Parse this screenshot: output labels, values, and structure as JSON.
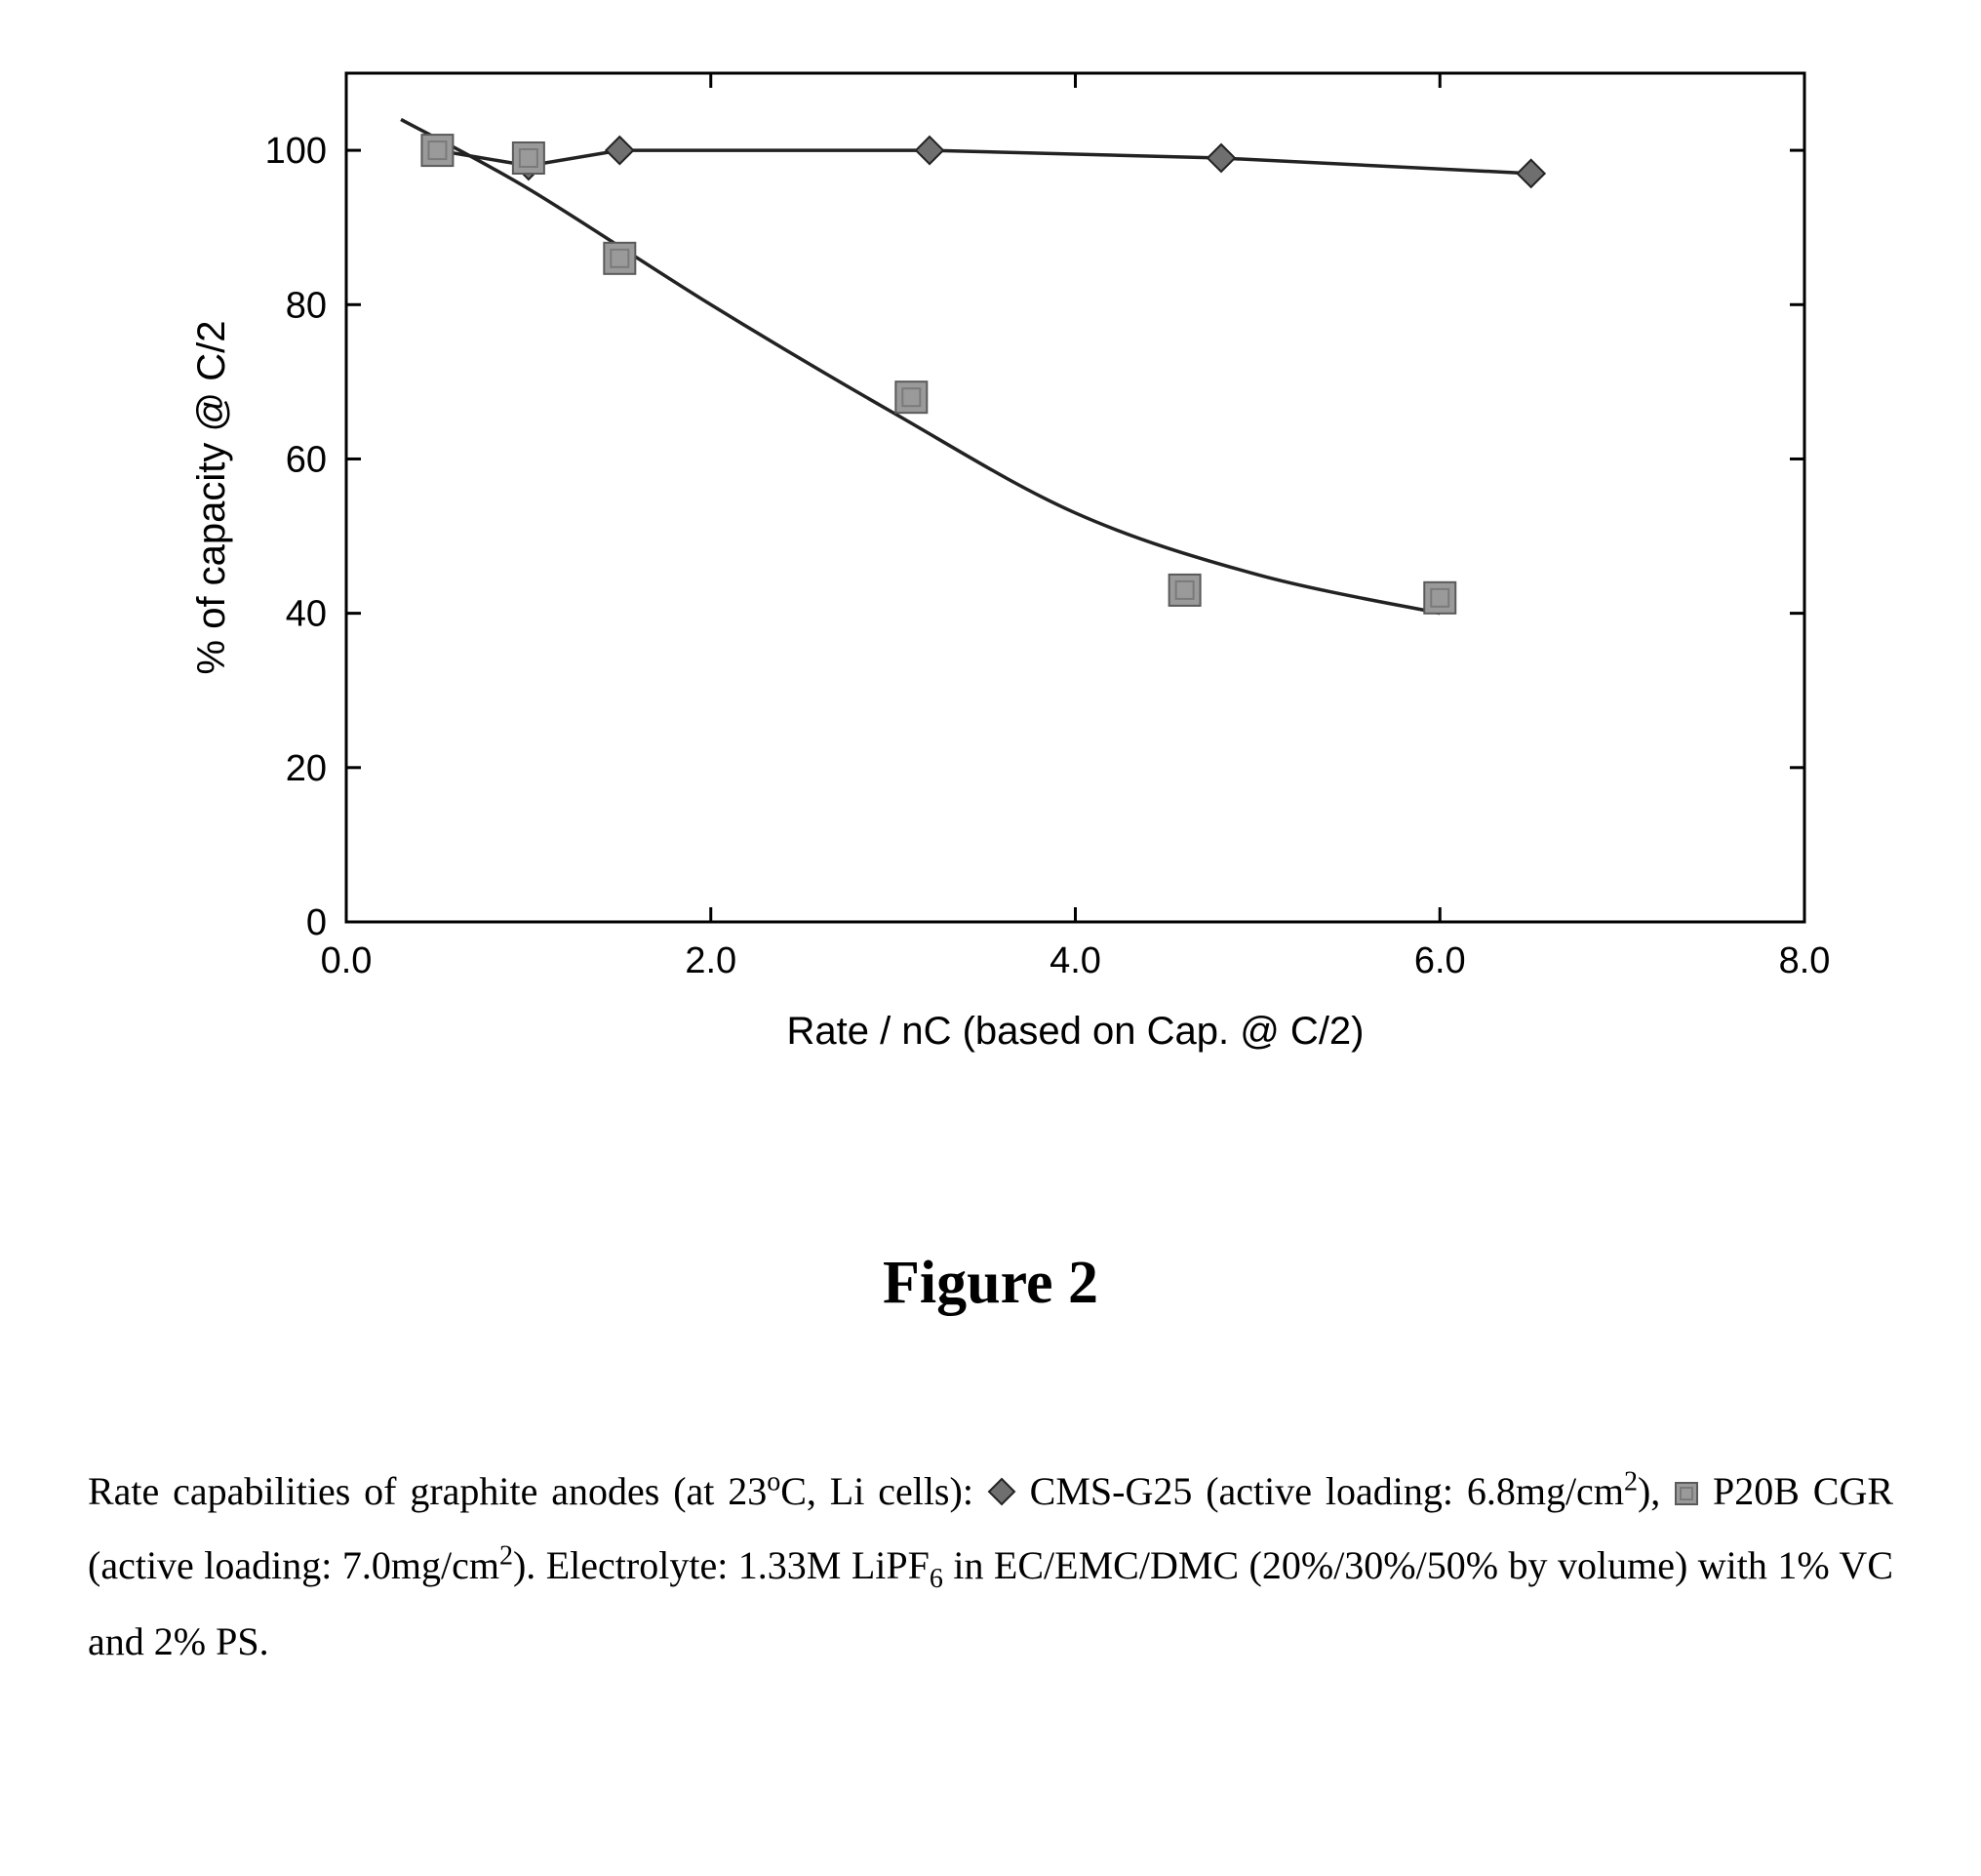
{
  "chart": {
    "type": "scatter-line",
    "xlabel": "Rate / nC (based on Cap. @ C/2)",
    "ylabel": "% of capacity @ C/2",
    "label_fontsize": 40,
    "tick_fontsize": 38,
    "xlim": [
      0,
      8
    ],
    "ylim": [
      0,
      110
    ],
    "xticks": [
      0.0,
      2.0,
      4.0,
      6.0,
      8.0
    ],
    "yticks": [
      0,
      20,
      40,
      60,
      80,
      100
    ],
    "xtick_labels": [
      "0.0",
      "2.0",
      "4.0",
      "6.0",
      "8.0"
    ],
    "ytick_labels": [
      "0",
      "20",
      "40",
      "60",
      "80",
      "100"
    ],
    "background_color": "#ffffff",
    "axis_color": "#000000",
    "axis_width": 3,
    "inner_tick_len": 15,
    "zero_line_y": 0,
    "series": [
      {
        "name": "CMS-G25",
        "marker": "diamond",
        "marker_size": 28,
        "marker_fill": "#6f6f6f",
        "marker_stroke": "#222222",
        "line_color": "#222222",
        "line_width": 3.5,
        "connect": true,
        "points": [
          {
            "x": 0.5,
            "y": 100
          },
          {
            "x": 1.0,
            "y": 98
          },
          {
            "x": 1.5,
            "y": 100
          },
          {
            "x": 3.2,
            "y": 100
          },
          {
            "x": 4.8,
            "y": 99
          },
          {
            "x": 6.5,
            "y": 97
          }
        ]
      },
      {
        "name": "P20B-CGR",
        "marker": "square",
        "marker_size": 32,
        "marker_fill": "#9a9a9a",
        "marker_stroke": "#5a5a5a",
        "inner_stroke": "#7a7a7a",
        "line_color": "#222222",
        "line_width": 3.5,
        "connect": false,
        "points": [
          {
            "x": 0.5,
            "y": 100
          },
          {
            "x": 1.0,
            "y": 99
          },
          {
            "x": 1.5,
            "y": 86
          },
          {
            "x": 3.1,
            "y": 68
          },
          {
            "x": 4.6,
            "y": 43
          },
          {
            "x": 6.0,
            "y": 42
          }
        ],
        "trend_curve": [
          {
            "x": 0.3,
            "y": 104
          },
          {
            "x": 1.0,
            "y": 95
          },
          {
            "x": 2.0,
            "y": 80
          },
          {
            "x": 3.0,
            "y": 66
          },
          {
            "x": 4.0,
            "y": 53
          },
          {
            "x": 5.0,
            "y": 45
          },
          {
            "x": 6.0,
            "y": 40
          }
        ]
      }
    ]
  },
  "figure_title": "Figure 2",
  "caption": {
    "pre": "Rate capabilities of graphite anodes (at 23",
    "deg": "o",
    "mid1": "C, Li cells): ",
    "series1": " CMS-G25 (active loading: 6.8mg/cm",
    "sup1": "2",
    "mid2": "), ",
    "series2": " P20B CGR (active loading: 7.0mg/cm",
    "sup2": "2",
    "mid3": "). Electrolyte: 1.33M LiPF",
    "sub6": "6",
    "mid4": " in EC/EMC/DMC (20%/30%/50% by volume) with 1% VC and 2% PS."
  }
}
